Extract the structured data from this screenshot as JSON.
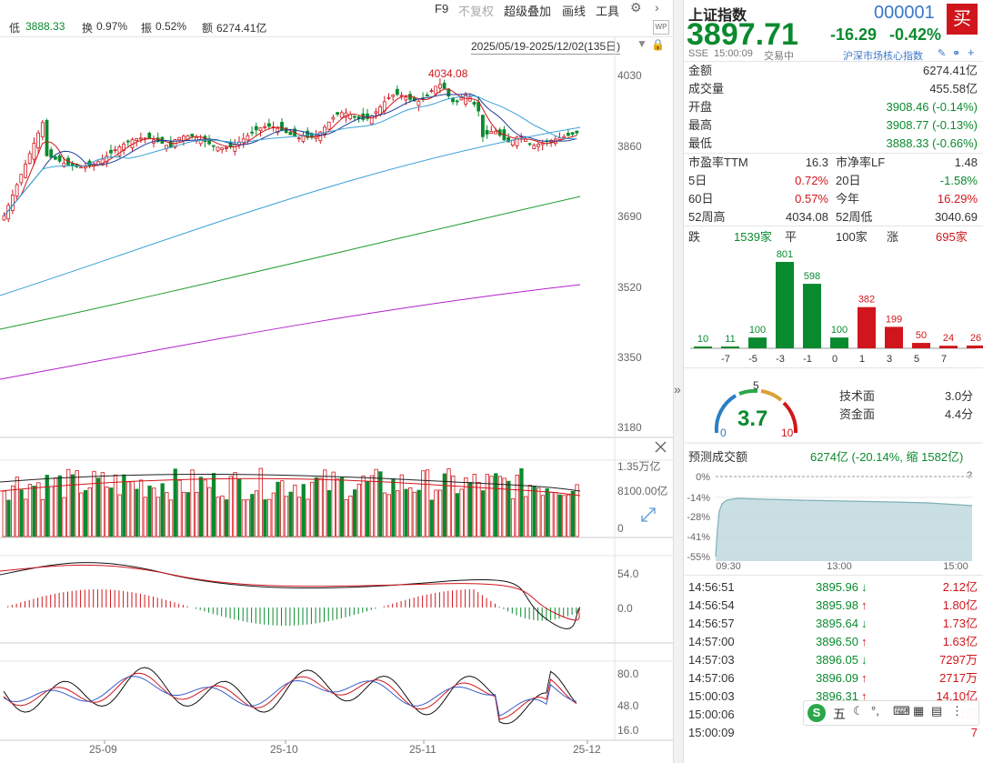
{
  "toolbar": {
    "low_label": "低",
    "low_value": "3888.33",
    "turnover_label": "换",
    "turnover_value": "0.97%",
    "amplitude_label": "振",
    "amplitude_value": "0.52%",
    "amount_label": "额",
    "amount_value": "6274.41亿",
    "f9": "F9",
    "no_restore": "不复权",
    "overlay": "超级叠加",
    "draw": "画线",
    "tools": "工具",
    "date_range": "2025/05/19-2025/12/02(135日)"
  },
  "main_chart": {
    "price_ticks": [
      "4030",
      "3860",
      "3690",
      "3520",
      "3350",
      "3180"
    ],
    "peak_label": "4034.08",
    "volume_ticks": [
      "1.35万亿",
      "8100.00亿",
      "0"
    ],
    "macd_ticks": [
      "54.0",
      "0.0"
    ],
    "kdj_ticks": [
      "80.0",
      "48.0",
      "16.0"
    ],
    "x_ticks": [
      "25-09",
      "25-10",
      "25-11",
      "25-12"
    ]
  },
  "quote": {
    "name": "上证指数",
    "code": "000001",
    "buy": "买",
    "price": "3897.71",
    "change": "-16.29",
    "change_pct": "-0.42%",
    "exchange": "SSE",
    "time": "15:00:09",
    "status": "交易中",
    "index_link": "沪深市场核心指数"
  },
  "stats": [
    {
      "label": "金额",
      "value": "6274.41亿",
      "color": "#333333"
    },
    {
      "label": "成交量",
      "value": "455.58亿",
      "color": "#333333"
    },
    {
      "label": "开盘",
      "value": "3908.46 (-0.14%)",
      "color": "#0a8a2e"
    },
    {
      "label": "最高",
      "value": "3908.77 (-0.13%)",
      "color": "#0a8a2e"
    },
    {
      "label": "最低",
      "value": "3888.33 (-0.66%)",
      "color": "#0a8a2e"
    }
  ],
  "metrics": [
    {
      "l1": "市盈率TTM",
      "v1": "16.3",
      "c1": "#333333",
      "l2": "市净率LF",
      "v2": "1.48",
      "c2": "#333333"
    },
    {
      "l1": "5日",
      "v1": "0.72%",
      "c1": "#d0161c",
      "l2": "20日",
      "v2": "-1.58%",
      "c2": "#0a8a2e"
    },
    {
      "l1": "60日",
      "v1": "0.57%",
      "c1": "#d0161c",
      "l2": "今年",
      "v2": "16.29%",
      "c2": "#d0161c"
    },
    {
      "l1": "52周高",
      "v1": "4034.08",
      "c1": "#333333",
      "l2": "52周低",
      "v2": "3040.69",
      "c2": "#333333"
    }
  ],
  "breadth": {
    "down_label": "跌",
    "down_count": "1539家",
    "flat_label": "平",
    "flat_count": "100家",
    "up_label": "涨",
    "up_count": "695家"
  },
  "distribution": {
    "values": [
      10,
      11,
      100,
      801,
      598,
      100,
      382,
      199,
      50,
      24,
      26
    ],
    "x_labels": [
      "-7",
      "-5",
      "-3",
      "-1",
      "0",
      "1",
      "3",
      "5",
      "7"
    ],
    "colors": [
      "#0a8a2e",
      "#0a8a2e",
      "#0a8a2e",
      "#0a8a2e",
      "#0a8a2e",
      "#0a8a2e",
      "#d0161c",
      "#d0161c",
      "#d0161c",
      "#d0161c",
      "#d0161c"
    ]
  },
  "gauge": {
    "score": "3.7",
    "min": "0",
    "mid": "5",
    "max": "10",
    "tech_label": "技术面",
    "tech_value": "3.0分",
    "fund_label": "资金面",
    "fund_value": "4.4分"
  },
  "forecast": {
    "title": "预测成交额",
    "summary": "6274亿 (-20.14%, 缩 1582亿)",
    "y_labels": [
      "0%",
      "-14%",
      "-28%",
      "-41%",
      "-55%"
    ],
    "x_labels": [
      "09:30",
      "13:00",
      "15:00"
    ],
    "question": "?"
  },
  "ticks": [
    {
      "time": "14:56:51",
      "price": "3895.96",
      "dir": "↓",
      "dir_color": "#0a8a2e",
      "vol": "2.12亿"
    },
    {
      "time": "14:56:54",
      "price": "3895.98",
      "dir": "↑",
      "dir_color": "#d0161c",
      "vol": "1.80亿"
    },
    {
      "time": "14:56:57",
      "price": "3895.64",
      "dir": "↓",
      "dir_color": "#0a8a2e",
      "vol": "1.73亿"
    },
    {
      "time": "14:57:00",
      "price": "3896.50",
      "dir": "↑",
      "dir_color": "#d0161c",
      "vol": "1.63亿"
    },
    {
      "time": "14:57:03",
      "price": "3896.05",
      "dir": "↓",
      "dir_color": "#0a8a2e",
      "vol": "7297万"
    },
    {
      "time": "14:57:06",
      "price": "3896.09",
      "dir": "↑",
      "dir_color": "#d0161c",
      "vol": "2717万"
    },
    {
      "time": "15:00:03",
      "price": "3896.31",
      "dir": "↑",
      "dir_color": "#d0161c",
      "vol": "14.10亿"
    },
    {
      "time": "15:00:06",
      "price": "",
      "dir": "",
      "dir_color": "#d0161c",
      "vol": "1亿"
    },
    {
      "time": "15:00:09",
      "price": "",
      "dir": "",
      "dir_color": "#d0161c",
      "vol": "7"
    }
  ],
  "ime": {
    "s": "S",
    "label": "五"
  }
}
